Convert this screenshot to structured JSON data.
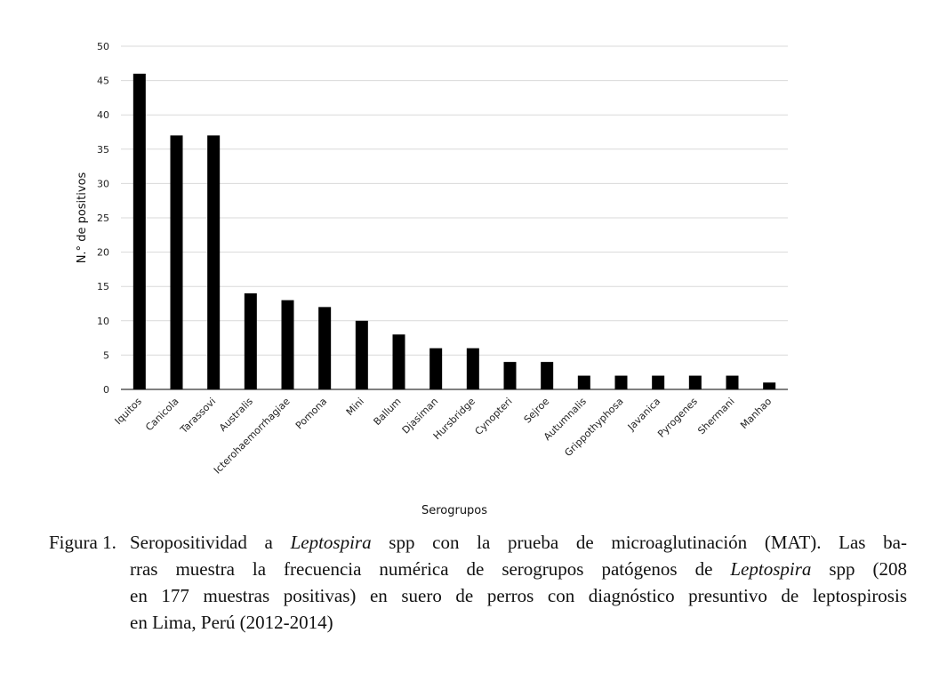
{
  "chart_data": {
    "type": "bar",
    "categories": [
      "Iquitos",
      "Canicola",
      "Tarassovi",
      "Australis",
      "Icterohaemorrhagiae",
      "Pomona",
      "Mini",
      "Ballum",
      "Djasiman",
      "Hursbridge",
      "Cynopteri",
      "Sejroe",
      "Autumnalis",
      "Grippothyphosa",
      "Javanica",
      "Pyrogenes",
      "Shermani",
      "Manhao"
    ],
    "values": [
      46,
      37,
      37,
      14,
      13,
      12,
      10,
      8,
      6,
      6,
      4,
      4,
      2,
      2,
      2,
      2,
      2,
      1
    ],
    "xlabel": "Serogrupos",
    "ylabel": "N.° de positivos",
    "ylim": [
      0,
      50
    ],
    "yticks": [
      0,
      5,
      10,
      15,
      20,
      25,
      30,
      35,
      40,
      45,
      50
    ],
    "grid": true,
    "bar_color": "#000000",
    "grid_color": "#d9d9d9"
  },
  "caption": {
    "label": "Figura 1.",
    "lines": [
      [
        {
          "t": "Seropositividad a "
        },
        {
          "t": "Leptospira",
          "i": true
        },
        {
          "t": " spp con la prueba de microaglutinación (MAT). Las ba-"
        }
      ],
      [
        {
          "t": "rras muestra la frecuencia numérica de serogrupos patógenos de "
        },
        {
          "t": "Leptospira",
          "i": true
        },
        {
          "t": " spp (208"
        }
      ],
      [
        {
          "t": "en 177 muestras positivas) en suero de perros con diagnóstico presuntivo de leptospirosis"
        }
      ],
      [
        {
          "t": "en Lima, Perú (2012-2014)"
        }
      ]
    ]
  }
}
